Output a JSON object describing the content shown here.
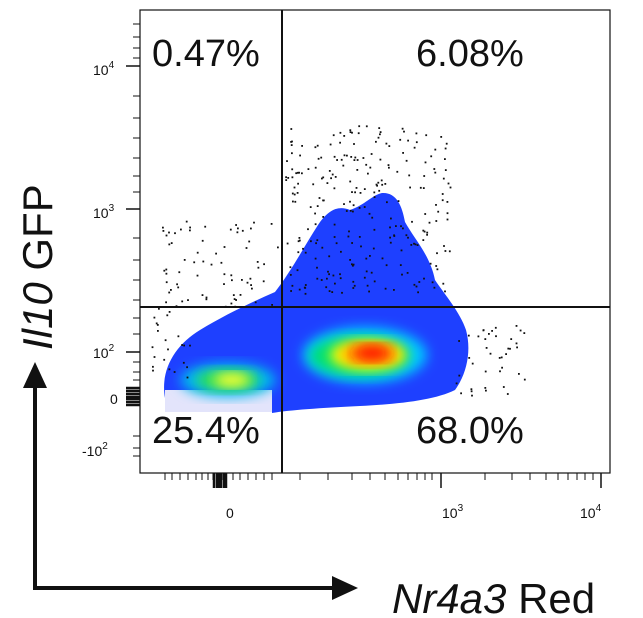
{
  "chart_data": {
    "type": "scatter",
    "subtype": "flow-cytometry-density-dot-plot",
    "x_axis": {
      "label_italic": "Nr4a3",
      "label_rest": " Red",
      "scale": "biexponential",
      "tick_labels": [
        {
          "value": 0,
          "base": "0",
          "exp": ""
        },
        {
          "value": 1000,
          "base": "10",
          "exp": "3"
        },
        {
          "value": 10000,
          "base": "10",
          "exp": "4"
        }
      ]
    },
    "y_axis": {
      "label_italic": "Il10",
      "label_rest": " GFP",
      "scale": "biexponential",
      "tick_labels": [
        {
          "value": 10000,
          "base": "10",
          "exp": "4"
        },
        {
          "value": 1000,
          "base": "10",
          "exp": "3"
        },
        {
          "value": 100,
          "base": "10",
          "exp": "2"
        },
        {
          "value": 0,
          "base": "0",
          "exp": ""
        },
        {
          "value": -100,
          "base": "-10",
          "exp": "2"
        }
      ]
    },
    "quadrants": [
      {
        "position": "top-left",
        "percent": "0.47%"
      },
      {
        "position": "top-right",
        "percent": "6.08%"
      },
      {
        "position": "bottom-left",
        "percent": "25.4%"
      },
      {
        "position": "bottom-right",
        "percent": "68.0%"
      }
    ],
    "density_colors": [
      "#e8e8fb",
      "#1e40ff",
      "#00c8ff",
      "#00e070",
      "#ffff00",
      "#ff8c00",
      "#ff0000"
    ],
    "outlier_dot_color": "#111111"
  }
}
